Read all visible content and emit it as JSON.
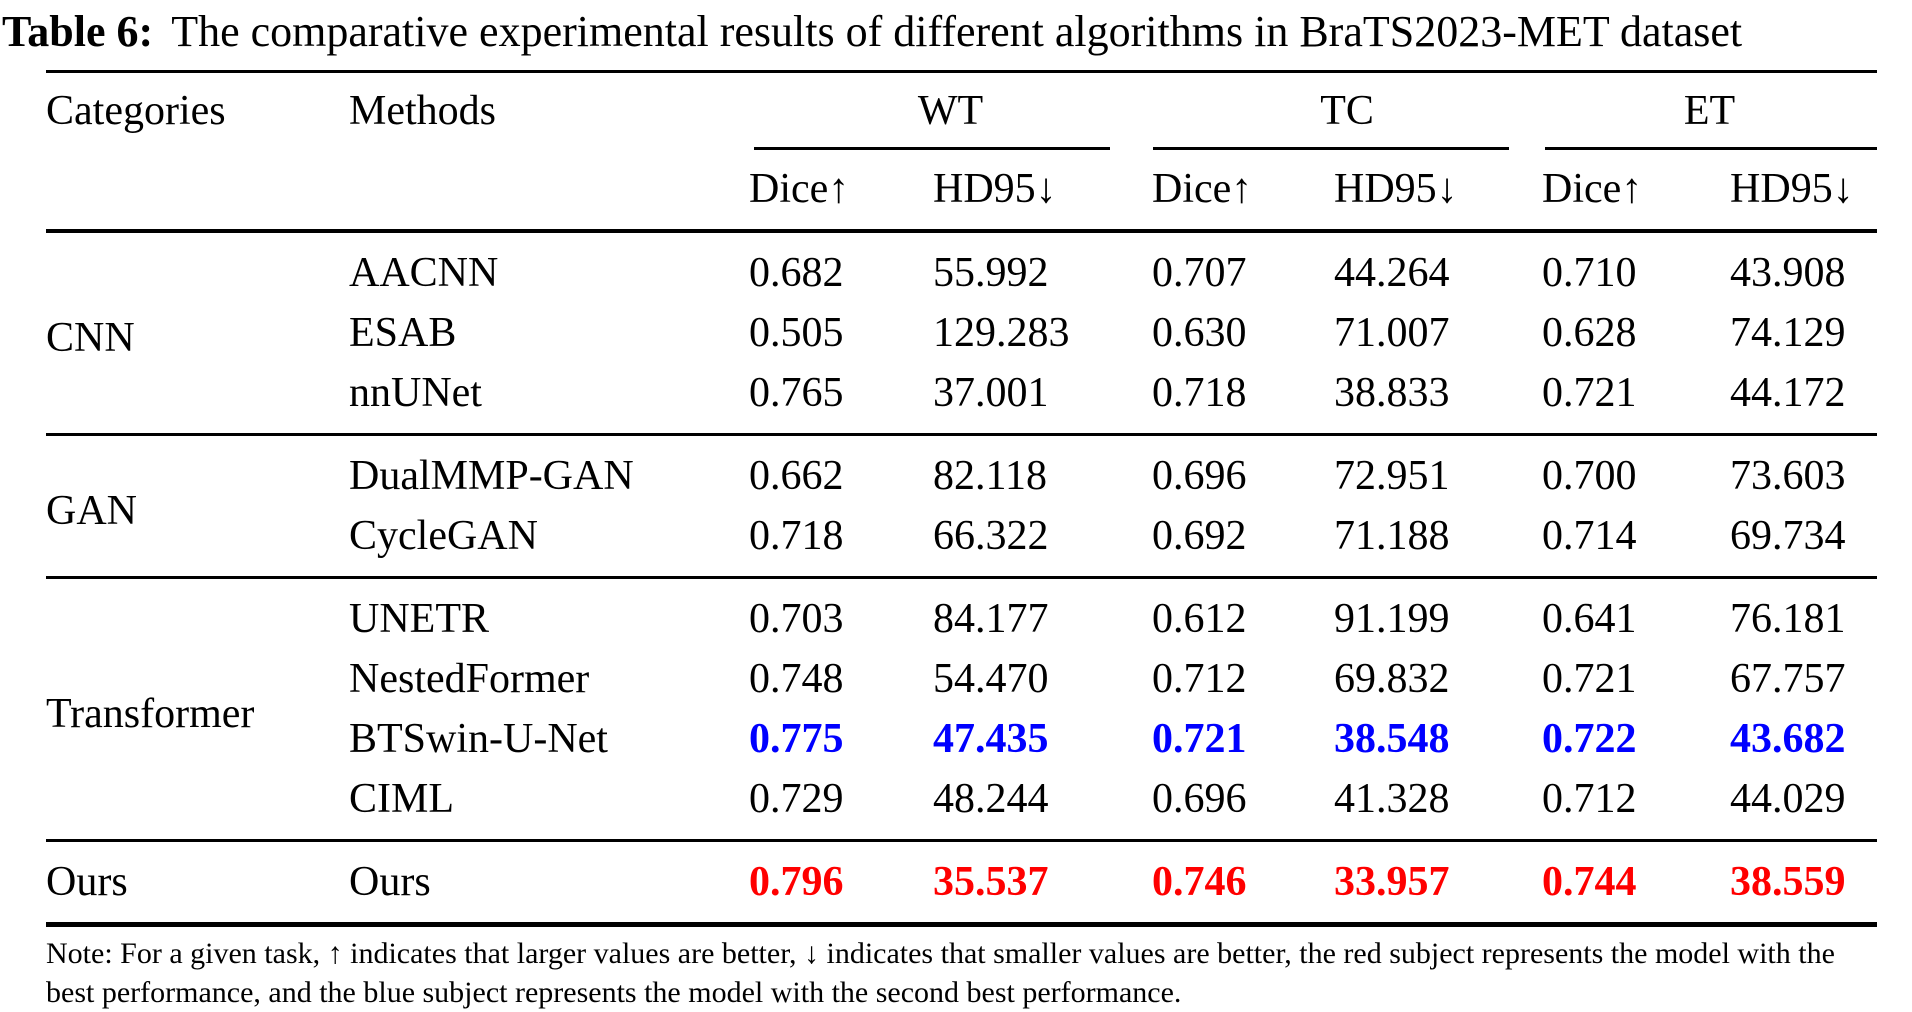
{
  "title": {
    "label": "Table 6:",
    "text": "The comparative experimental results of different algorithms in BraTS2023-MET dataset"
  },
  "header": {
    "categories": "Categories",
    "methods": "Methods",
    "groups": [
      {
        "label": "WT"
      },
      {
        "label": "TC"
      },
      {
        "label": "ET"
      }
    ],
    "metrics": [
      "Dice↑",
      "HD95↓"
    ]
  },
  "colors": {
    "best": "#ff0000",
    "second_best": "#0000ff",
    "text": "#000000"
  },
  "table": {
    "groups": [
      {
        "category": "CNN",
        "rows": [
          {
            "method": "AACNN",
            "values": [
              "0.682",
              "55.992",
              "0.707",
              "44.264",
              "0.710",
              "43.908"
            ]
          },
          {
            "method": "ESAB",
            "values": [
              "0.505",
              "129.283",
              "0.630",
              "71.007",
              "0.628",
              "74.129"
            ]
          },
          {
            "method": "nnUNet",
            "values": [
              "0.765",
              "37.001",
              "0.718",
              "38.833",
              "0.721",
              "44.172"
            ]
          }
        ]
      },
      {
        "category": "GAN",
        "rows": [
          {
            "method": "DualMMP-GAN",
            "values": [
              "0.662",
              "82.118",
              "0.696",
              "72.951",
              "0.700",
              "73.603"
            ]
          },
          {
            "method": "CycleGAN",
            "values": [
              "0.718",
              "66.322",
              "0.692",
              "71.188",
              "0.714",
              "69.734"
            ]
          }
        ]
      },
      {
        "category": "Transformer",
        "rows": [
          {
            "method": "UNETR",
            "values": [
              "0.703",
              "84.177",
              "0.612",
              "91.199",
              "0.641",
              "76.181"
            ]
          },
          {
            "method": "NestedFormer",
            "values": [
              "0.748",
              "54.470",
              "0.712",
              "69.832",
              "0.721",
              "67.757"
            ]
          },
          {
            "method": "BTSwin-U-Net",
            "values": [
              "0.775",
              "47.435",
              "0.721",
              "38.548",
              "0.722",
              "43.682"
            ],
            "highlight": "second-best"
          },
          {
            "method": "CIML",
            "values": [
              "0.729",
              "48.244",
              "0.696",
              "41.328",
              "0.712",
              "44.029"
            ]
          }
        ]
      },
      {
        "category": "Ours",
        "rows": [
          {
            "method": "Ours",
            "values": [
              "0.796",
              "35.537",
              "0.746",
              "33.957",
              "0.744",
              "38.559"
            ],
            "highlight": "best"
          }
        ]
      }
    ]
  },
  "note": "Note: For a given task, ↑ indicates that larger values are better, ↓ indicates that smaller values are better, the red subject represents the model with the best performance, and the blue subject represents the model with the second best performance."
}
